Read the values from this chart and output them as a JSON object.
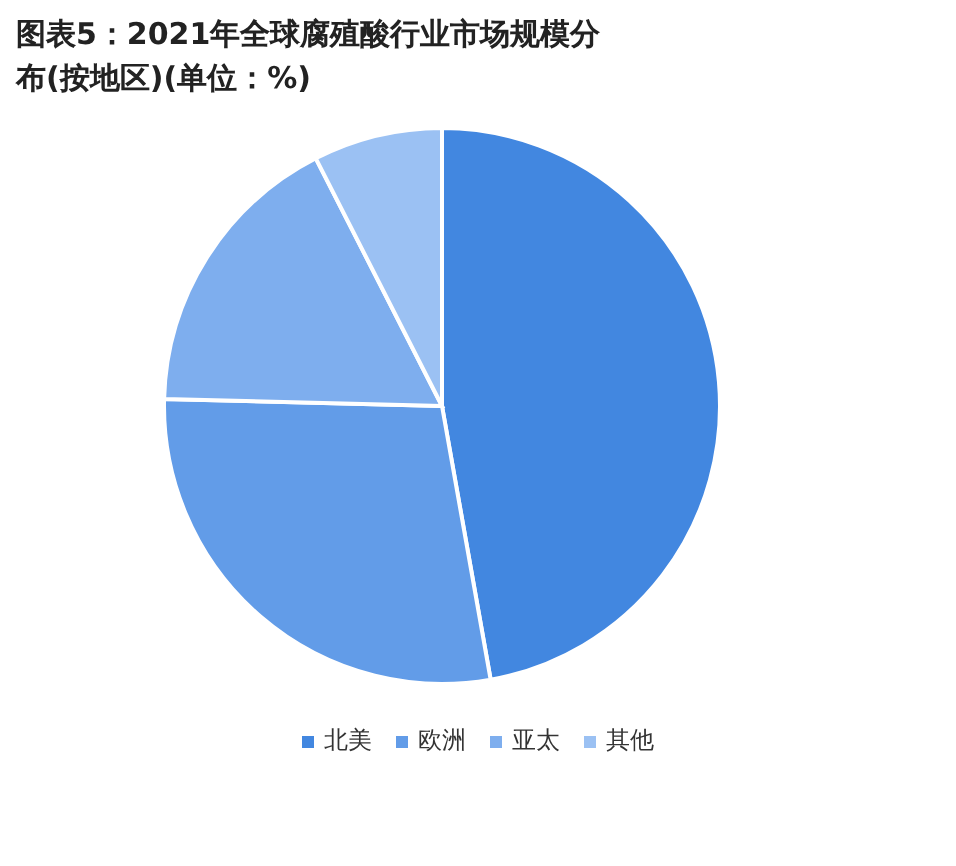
{
  "chart_data": {
    "type": "pie",
    "title": "图表5：2021年全球腐殖酸行业市场规模分布(按地区)(单位：%)",
    "categories": [
      "北美",
      "欧洲",
      "亚太",
      "其他"
    ],
    "values": [
      47.2,
      28.2,
      17.1,
      7.5
    ],
    "colors": [
      "#4287e0",
      "#629ce8",
      "#7eaeee",
      "#9bc1f3"
    ],
    "legend": "bottom"
  }
}
